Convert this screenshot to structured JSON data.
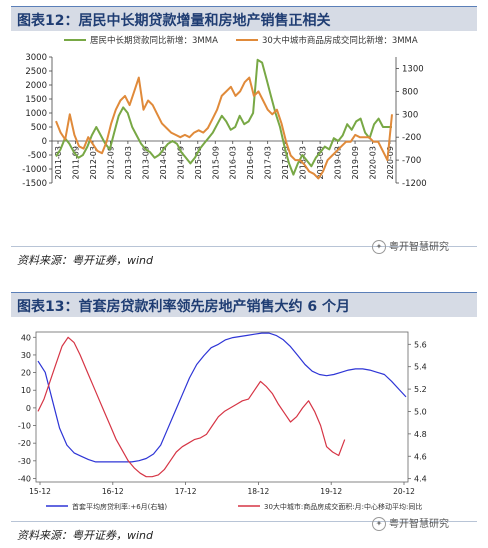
{
  "figure12": {
    "title": "图表12：居民中长期贷款增量和房地产销售正相关",
    "source": "资料来源：粤开证券，wind",
    "brand": "粤开智慧研究",
    "chart_data": {
      "type": "line",
      "legend": [
        "居民中长期贷款同比新增：3MMA",
        "30大中城市商品房成交同比新增：3MMA"
      ],
      "legend_placement": "top",
      "colors": [
        "#78a845",
        "#e08a3a"
      ],
      "x_ticks": [
        "2011-03",
        "2011-09",
        "2012-03",
        "2012-09",
        "2013-03",
        "2013-09",
        "2014-03",
        "2014-09",
        "2015-03",
        "2015-09",
        "2016-03",
        "2016-09",
        "2017-03",
        "2017-09",
        "2018-03",
        "2018-09",
        "2019-03",
        "2019-09",
        "2020-03",
        "2020-09"
      ],
      "left_ticks": [
        3000,
        2500,
        2000,
        1500,
        1000,
        500,
        0,
        -500,
        -1000,
        -1500
      ],
      "left_ylim": [
        -1500,
        3000
      ],
      "right_ticks": [
        1300,
        800,
        300,
        -200,
        -700,
        -1200
      ],
      "right_ylim": [
        -1200,
        1550
      ],
      "series": [
        {
          "name": "居民中长期贷款同比新增：3MMA",
          "axis": "left",
          "values": [
            -550,
            -300,
            100,
            -100,
            -400,
            -600,
            -500,
            -200,
            200,
            500,
            200,
            -100,
            -300,
            300,
            900,
            1200,
            1000,
            500,
            200,
            -100,
            -300,
            -400,
            -600,
            -500,
            -300,
            -100,
            0,
            -100,
            -400,
            -600,
            -800,
            -600,
            -300,
            -100,
            100,
            300,
            600,
            900,
            700,
            400,
            500,
            900,
            600,
            700,
            1000,
            2900,
            2800,
            2200,
            1600,
            1000,
            500,
            -200,
            -800,
            -1200,
            -800,
            -500,
            -700,
            -900,
            -600,
            -400,
            -200,
            -300,
            100,
            0,
            200,
            600,
            400,
            700,
            800,
            300,
            100,
            600,
            800,
            500,
            500,
            500
          ]
        },
        {
          "name": "30大中城市商品房成交同比新增：3MMA",
          "axis": "right",
          "values": [
            150,
            -100,
            -250,
            300,
            -150,
            -400,
            -450,
            -200,
            -350,
            -500,
            -550,
            -300,
            100,
            400,
            600,
            700,
            500,
            800,
            1100,
            400,
            600,
            500,
            300,
            100,
            0,
            -100,
            -150,
            -200,
            -150,
            -200,
            -100,
            -50,
            -100,
            0,
            200,
            400,
            700,
            800,
            900,
            700,
            800,
            1000,
            1100,
            700,
            800,
            600,
            400,
            300,
            400,
            100,
            -300,
            -600,
            -700,
            -700,
            -800,
            -950,
            -1000,
            -1100,
            -950,
            -700,
            -600,
            -500,
            -400,
            -300,
            -300,
            -150,
            -200,
            -200,
            -200,
            -300,
            -300,
            -500,
            -700,
            300
          ]
        }
      ]
    }
  },
  "figure13": {
    "title": "图表13：首套房贷款利率领先房地产销售大约 6 个月",
    "source": "资料来源：粤开证券，wind",
    "brand": "粤开智慧研究",
    "chart_data": {
      "type": "line",
      "legend": [
        "首套平均房贷利率:+6月(右轴)",
        "30大中城市:商品房成交面积:月:中心移动平均:同比"
      ],
      "legend_placement": "bottom",
      "colors": [
        "#2e35d6",
        "#d63545"
      ],
      "x_ticks": [
        "15-12",
        "16-12",
        "17-12",
        "18-12",
        "19-12",
        "20-12"
      ],
      "left_ticks": [
        40,
        30,
        20,
        10,
        0,
        -10,
        -20,
        -30,
        -40
      ],
      "left_ylim": [
        -42,
        43
      ],
      "right_ticks": [
        5.6,
        5.4,
        5.2,
        5.0,
        4.8,
        4.6,
        4.4
      ],
      "right_ylim": [
        4.37,
        5.71
      ],
      "series": [
        {
          "name": "首套平均房贷利率:+6月(右轴)",
          "axis": "right",
          "x_range": [
            0,
            60
          ],
          "values": [
            5.45,
            5.35,
            5.1,
            4.85,
            4.7,
            4.63,
            4.6,
            4.57,
            4.55,
            4.55,
            4.55,
            4.55,
            4.55,
            4.55,
            4.56,
            4.58,
            4.62,
            4.7,
            4.85,
            5.0,
            5.15,
            5.3,
            5.42,
            5.5,
            5.57,
            5.6,
            5.64,
            5.66,
            5.67,
            5.68,
            5.69,
            5.7,
            5.7,
            5.68,
            5.64,
            5.58,
            5.5,
            5.42,
            5.36,
            5.33,
            5.32,
            5.33,
            5.35,
            5.37,
            5.38,
            5.38,
            5.37,
            5.35,
            5.33,
            5.27,
            5.2,
            5.13
          ]
        },
        {
          "name": "30大中城市:商品房成交面积:月:中心移动平均:同比",
          "axis": "left",
          "x_range": [
            0,
            50
          ],
          "values": [
            -2,
            5,
            15,
            25,
            35,
            40,
            37,
            30,
            22,
            14,
            6,
            -2,
            -10,
            -18,
            -24,
            -30,
            -34,
            -37,
            -39,
            -39,
            -38,
            -35,
            -30,
            -25,
            -22,
            -20,
            -18,
            -17,
            -15,
            -10,
            -5,
            -2,
            0,
            2,
            4,
            5,
            10,
            15,
            12,
            8,
            2,
            -3,
            -8,
            -5,
            0,
            4,
            -2,
            -10,
            -22,
            -25,
            -27,
            -18
          ]
        }
      ]
    }
  }
}
